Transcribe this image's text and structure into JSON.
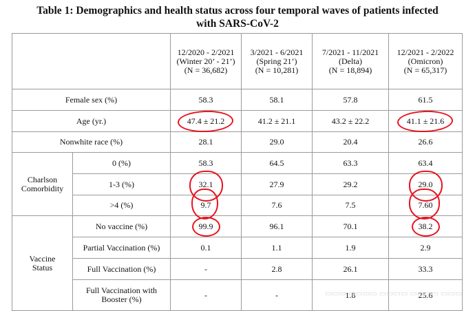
{
  "title_line1": "Table 1: Demographics and health status across four temporal waves of patients infected",
  "title_line2": "with SARS-CoV-2",
  "waves": [
    {
      "period": "12/2020 - 2/2021",
      "label": "(Winter 20’ - 21’)",
      "n": "(N = 36,682)"
    },
    {
      "period": "3/2021 - 6/2021",
      "label": "(Spring 21’)",
      "n": "(N = 10,281)"
    },
    {
      "period": "7/2021 - 11/2021",
      "label": "(Delta)",
      "n": "(N = 18,894)"
    },
    {
      "period": "12/2021 - 2/2022",
      "label": "(Omicron)",
      "n": "(N = 65,317)"
    }
  ],
  "rows": {
    "female": {
      "label": "Female sex (%)",
      "values": [
        "58.3",
        "58.1",
        "57.8",
        "61.5"
      ]
    },
    "age": {
      "label": "Age (yr.)",
      "values": [
        "47.4 ± 21.2",
        "41.2 ± 21.1",
        "43.2 ± 22.2",
        "41.1 ± 21.6"
      ]
    },
    "nonwhite": {
      "label": "Nonwhite race (%)",
      "values": [
        "28.1",
        "29.0",
        "20.4",
        "26.6"
      ]
    }
  },
  "charlson": {
    "group_label_line1": "Charlson",
    "group_label_line2": "Comorbidity",
    "rows": [
      {
        "label": "0 (%)",
        "values": [
          "58.3",
          "64.5",
          "63.3",
          "63.4"
        ]
      },
      {
        "label": "1-3  (%)",
        "values": [
          "32.1",
          "27.9",
          "29.2",
          "29.0"
        ]
      },
      {
        "label": ">4  (%)",
        "values": [
          "9.7",
          "7.6",
          "7.5",
          "7.60"
        ]
      }
    ]
  },
  "vaccine": {
    "group_label_line1": "Vaccine",
    "group_label_line2": "Status",
    "rows": [
      {
        "label": "No vaccine (%)",
        "values": [
          "99.9",
          "96.1",
          "70.1",
          "38.2"
        ]
      },
      {
        "label": "Partial Vaccination (%)",
        "values": [
          "0.1",
          "1.1",
          "1.9",
          "2.9"
        ]
      },
      {
        "label": "Full Vaccination (%)",
        "values": [
          "-",
          "2.8",
          "26.1",
          "33.3"
        ]
      },
      {
        "label_line1": "Full Vaccination with",
        "label_line2": "Booster (%)",
        "values": [
          "-",
          "-",
          "1.8",
          "25.6"
        ]
      }
    ]
  },
  "annotation_color": "#e8131e"
}
